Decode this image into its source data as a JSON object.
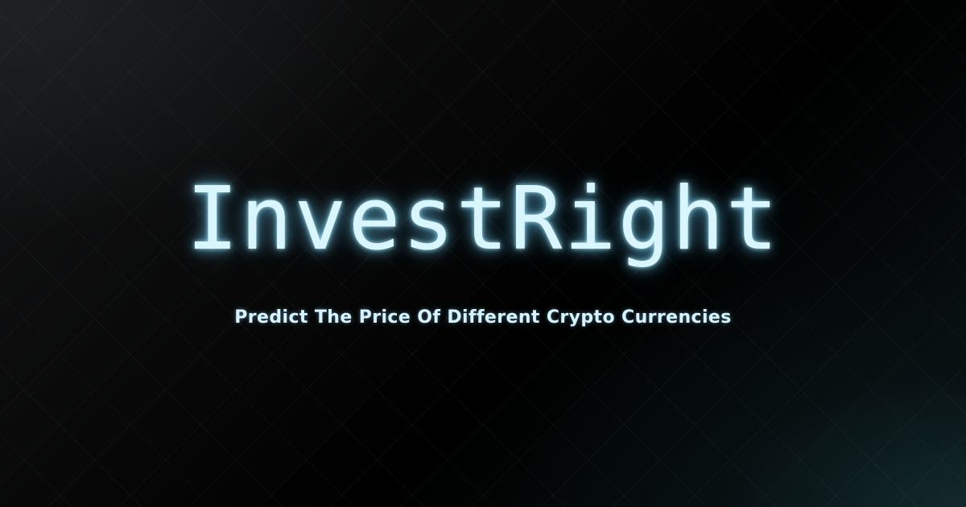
{
  "banner": {
    "title": "InvestRight",
    "tagline": "Predict The Price Of Different Crypto Currencies"
  },
  "colors": {
    "glow_text": "#d9f6ff",
    "background": "#000000",
    "teal_accent": "#122a2c"
  }
}
